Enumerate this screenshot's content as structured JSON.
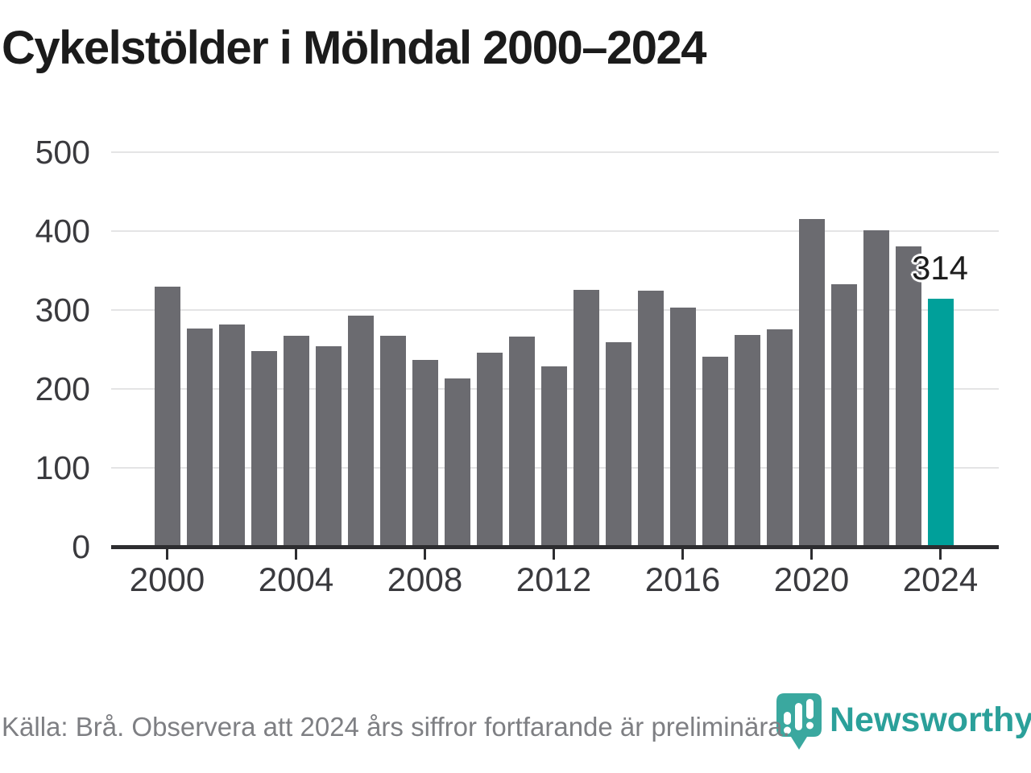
{
  "title": "Cykelstölder i Mölndal 2000–2024",
  "chart_data": {
    "type": "bar",
    "title": "Cykelstölder i Mölndal 2000–2024",
    "x": [
      2000,
      2001,
      2002,
      2003,
      2004,
      2005,
      2006,
      2007,
      2008,
      2009,
      2010,
      2011,
      2012,
      2013,
      2014,
      2015,
      2016,
      2017,
      2018,
      2019,
      2020,
      2021,
      2022,
      2023,
      2024
    ],
    "values": [
      329,
      276,
      281,
      248,
      267,
      254,
      293,
      267,
      236,
      213,
      246,
      266,
      228,
      325,
      259,
      324,
      303,
      241,
      268,
      275,
      415,
      332,
      401,
      380,
      314
    ],
    "xlabel": "",
    "ylabel": "",
    "ylim": [
      0,
      500
    ],
    "yticks": [
      0,
      100,
      200,
      300,
      400,
      500
    ],
    "xticks": [
      2000,
      2004,
      2008,
      2012,
      2016,
      2020,
      2024
    ],
    "grid": true,
    "legend": "none",
    "bar_color": "#6b6b70",
    "highlight_year": 2024,
    "highlight_color": "#00a09a",
    "highlight_value_label": "314"
  },
  "footer": {
    "source_note": "Källa: Brå. Observera att 2024 års siffror fortfarande är preliminära.",
    "brand": "Newsworthy"
  },
  "colors": {
    "title_text": "#1b1b1b",
    "axis_text": "#3a3a3e",
    "gridline": "#e4e4e5",
    "axis_line": "#2d2d30",
    "bar_gray": "#6b6b70",
    "bar_teal": "#00a09a",
    "annotation_text": "#1d1d1d",
    "footer_text": "#7e7f83",
    "logo_teal": "#2ba09a",
    "logo_pin_teal": "#3aa89f"
  }
}
